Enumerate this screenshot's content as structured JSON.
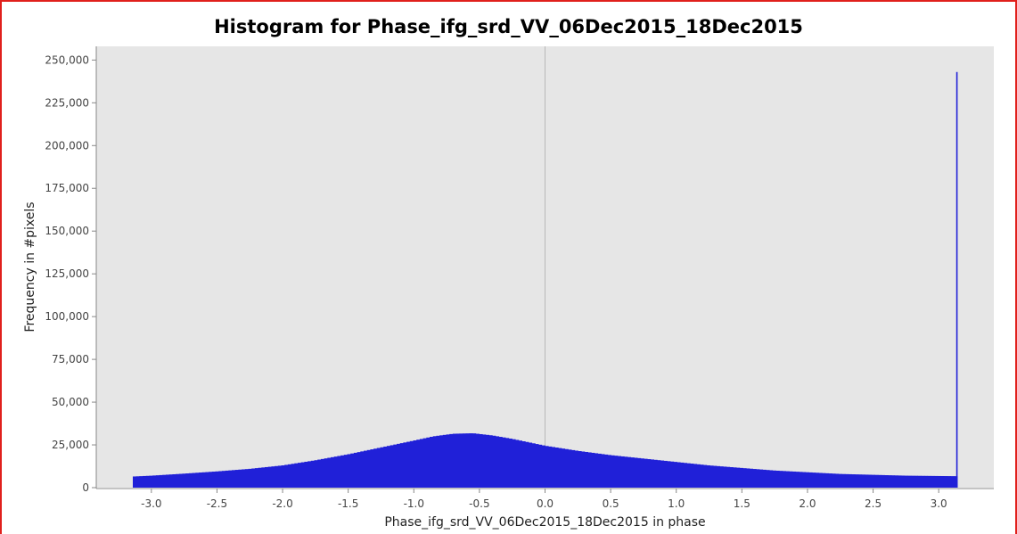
{
  "chart_data": {
    "type": "bar",
    "title": "Histogram for Phase_ifg_srd_VV_06Dec2015_18Dec2015",
    "xlabel": "Phase_ifg_srd_VV_06Dec2015_18Dec2015 in phase",
    "ylabel": "Frequency in #pixels",
    "xlim": [
      -3.42,
      3.42
    ],
    "ylim": [
      0,
      258000
    ],
    "x_ticks": [
      "-3.0",
      "-2.5",
      "-2.0",
      "-1.5",
      "-1.0",
      "-0.5",
      "0.0",
      "0.5",
      "1.0",
      "1.5",
      "2.0",
      "2.5",
      "3.0"
    ],
    "x_tick_values": [
      -3.0,
      -2.5,
      -2.0,
      -1.5,
      -1.0,
      -0.5,
      0.0,
      0.5,
      1.0,
      1.5,
      2.0,
      2.5,
      3.0
    ],
    "y_ticks": [
      "0",
      "25,000",
      "50,000",
      "75,000",
      "100,000",
      "125,000",
      "150,000",
      "175,000",
      "200,000",
      "225,000",
      "250,000"
    ],
    "y_tick_values": [
      0,
      25000,
      50000,
      75000,
      100000,
      125000,
      150000,
      175000,
      200000,
      225000,
      250000
    ],
    "bin_range": [
      -3.1416,
      3.1416
    ],
    "x": [
      -3.14,
      -3.0,
      -2.75,
      -2.5,
      -2.25,
      -2.0,
      -1.75,
      -1.5,
      -1.25,
      -1.0,
      -0.85,
      -0.7,
      -0.55,
      -0.4,
      -0.25,
      0.0,
      0.25,
      0.5,
      0.75,
      1.0,
      1.25,
      1.5,
      1.75,
      2.0,
      2.25,
      2.5,
      2.75,
      3.0,
      3.13
    ],
    "values": [
      6500,
      7000,
      8200,
      9500,
      11000,
      13000,
      16000,
      19500,
      23500,
      27500,
      30000,
      31500,
      31800,
      30500,
      28500,
      24500,
      21500,
      19000,
      17000,
      15000,
      13000,
      11500,
      10000,
      9000,
      8000,
      7500,
      7000,
      6800,
      6700
    ],
    "spike": {
      "x": 3.14,
      "value": 243000
    },
    "color": "#2020d8",
    "grid": true
  }
}
